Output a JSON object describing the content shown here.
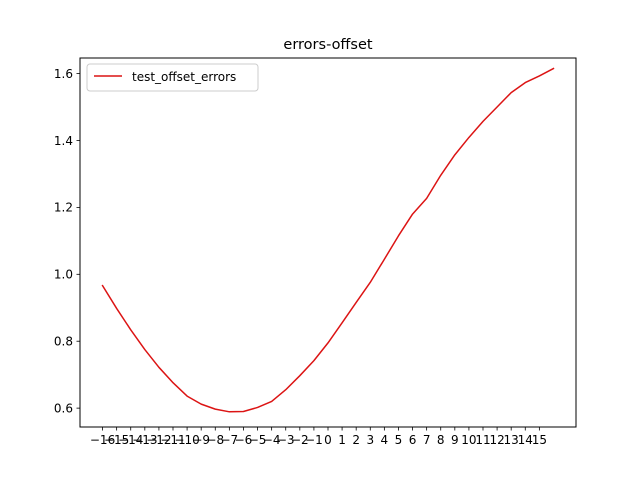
{
  "chart_data": {
    "type": "line",
    "title": "errors-offset",
    "xlabel": "",
    "ylabel": "",
    "x_tick_labels": [
      "−16",
      "−15",
      "−14",
      "−13",
      "−12",
      "−11",
      "−10",
      "−9",
      "−8",
      "−7",
      "−6",
      "−5",
      "−4",
      "−3",
      "−2",
      "−1",
      "0",
      "1",
      "2",
      "3",
      "4",
      "5",
      "6",
      "7",
      "8",
      "9",
      "10",
      "11",
      "12",
      "13",
      "14",
      "15"
    ],
    "x": [
      -16,
      -15,
      -14,
      -13,
      -12,
      -11,
      -10,
      -9,
      -8,
      -7,
      -6,
      -5,
      -4,
      -3,
      -2,
      -1,
      0,
      1,
      2,
      3,
      4,
      5,
      6,
      7,
      8,
      9,
      10,
      11,
      12,
      13,
      14,
      15,
      16
    ],
    "xlim": [
      -17.6,
      17.6
    ],
    "y_ticks": [
      0.6,
      0.8,
      1.0,
      1.2,
      1.4,
      1.6
    ],
    "y_tick_labels": [
      "0.6",
      "0.8",
      "1.0",
      "1.2",
      "1.4",
      "1.6"
    ],
    "ylim": [
      0.5436,
      1.6465
    ],
    "grid": false,
    "legend_position": "upper-left",
    "series": [
      {
        "name": "test_offset_errors",
        "color": "#dc1414",
        "values": [
          0.966,
          0.898,
          0.834,
          0.775,
          0.722,
          0.676,
          0.636,
          0.612,
          0.597,
          0.589,
          0.59,
          0.602,
          0.62,
          0.655,
          0.697,
          0.742,
          0.795,
          0.855,
          0.916,
          0.976,
          1.045,
          1.115,
          1.18,
          1.227,
          1.296,
          1.357,
          1.409,
          1.457,
          1.5,
          1.543,
          1.573,
          1.593,
          1.615
        ]
      }
    ]
  }
}
